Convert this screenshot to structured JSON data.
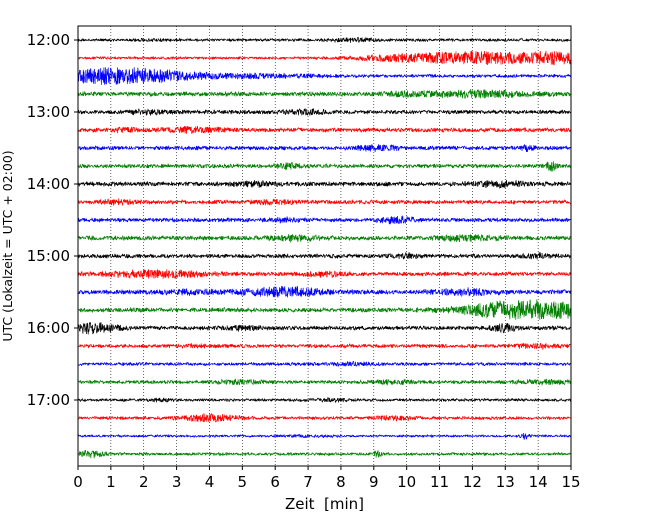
{
  "chart_data": {
    "type": "line",
    "chart_kind": "helicorder",
    "xlabel": "Zeit  [min]",
    "ylabel": "UTC (Lokalzeit = UTC + 02:00)",
    "xlim": [
      0,
      15
    ],
    "x_ticks": [
      0,
      1,
      2,
      3,
      4,
      5,
      6,
      7,
      8,
      9,
      10,
      11,
      12,
      13,
      14,
      15
    ],
    "x_tick_labels": [
      "0",
      "1",
      "2",
      "3",
      "4",
      "5",
      "6",
      "7",
      "8",
      "9",
      "10",
      "11",
      "12",
      "13",
      "14",
      "15"
    ],
    "y_tick_labels": [
      "12:00",
      "13:00",
      "14:00",
      "15:00",
      "16:00",
      "17:00"
    ],
    "vertical_grid": "dotted",
    "colors": [
      "#000000",
      "#ff0000",
      "#0000ff",
      "#008000"
    ],
    "traces": [
      {
        "start": "12:00",
        "color": "#000000",
        "base_amp": 1.6,
        "events": [
          {
            "t": 8.3,
            "w": 0.5,
            "a": 1.5
          },
          {
            "t": 2.2,
            "w": 0.3,
            "a": 0.8
          }
        ]
      },
      {
        "start": "12:15",
        "color": "#ff0000",
        "base_amp": 1.5,
        "events": [
          {
            "t": 12.2,
            "w": 1.6,
            "a": 6.0
          },
          {
            "t": 14.9,
            "w": 0.7,
            "a": 4.5
          },
          {
            "t": 9.5,
            "w": 0.9,
            "a": 1.5
          }
        ]
      },
      {
        "start": "12:30",
        "color": "#0000ff",
        "base_amp": 1.8,
        "events": [
          {
            "t": 1.2,
            "w": 1.5,
            "a": 7.5
          },
          {
            "t": 5.3,
            "w": 1.4,
            "a": 1.5
          }
        ]
      },
      {
        "start": "12:45",
        "color": "#008000",
        "base_amp": 2.4,
        "events": [
          {
            "t": 12.2,
            "w": 1.2,
            "a": 2.5
          },
          {
            "t": 10.0,
            "w": 0.4,
            "a": 1.2
          }
        ]
      },
      {
        "start": "13:00",
        "color": "#000000",
        "base_amp": 2.2,
        "events": [
          {
            "t": 6.9,
            "w": 0.4,
            "a": 2.0
          },
          {
            "t": 2.1,
            "w": 0.4,
            "a": 1.5
          }
        ]
      },
      {
        "start": "13:15",
        "color": "#ff0000",
        "base_amp": 2.3,
        "events": [
          {
            "t": 3.4,
            "w": 0.6,
            "a": 2.0
          },
          {
            "t": 1.5,
            "w": 0.3,
            "a": 1.5
          }
        ]
      },
      {
        "start": "13:30",
        "color": "#0000ff",
        "base_amp": 2.2,
        "events": [
          {
            "t": 9.1,
            "w": 0.5,
            "a": 2.0
          },
          {
            "t": 13.7,
            "w": 0.15,
            "a": 2.0
          }
        ]
      },
      {
        "start": "13:45",
        "color": "#008000",
        "base_amp": 2.2,
        "events": [
          {
            "t": 14.4,
            "w": 0.12,
            "a": 4.0
          },
          {
            "t": 6.4,
            "w": 0.3,
            "a": 2.0
          }
        ]
      },
      {
        "start": "14:00",
        "color": "#000000",
        "base_amp": 2.4,
        "events": [
          {
            "t": 12.8,
            "w": 0.5,
            "a": 2.0
          },
          {
            "t": 5.4,
            "w": 0.4,
            "a": 1.5
          }
        ]
      },
      {
        "start": "14:15",
        "color": "#ff0000",
        "base_amp": 2.2,
        "events": [
          {
            "t": 1.2,
            "w": 0.4,
            "a": 1.5
          },
          {
            "t": 6.0,
            "w": 0.4,
            "a": 1.5
          }
        ]
      },
      {
        "start": "14:30",
        "color": "#0000ff",
        "base_amp": 2.2,
        "events": [
          {
            "t": 9.7,
            "w": 0.35,
            "a": 3.0
          },
          {
            "t": 6.4,
            "w": 0.3,
            "a": 1.5
          }
        ]
      },
      {
        "start": "14:45",
        "color": "#008000",
        "base_amp": 2.4,
        "events": [
          {
            "t": 6.6,
            "w": 0.5,
            "a": 2.0
          },
          {
            "t": 11.8,
            "w": 0.7,
            "a": 2.0
          }
        ]
      },
      {
        "start": "15:00",
        "color": "#000000",
        "base_amp": 2.2,
        "events": [
          {
            "t": 10.0,
            "w": 0.3,
            "a": 1.5
          },
          {
            "t": 14.0,
            "w": 0.4,
            "a": 1.5
          }
        ]
      },
      {
        "start": "15:15",
        "color": "#ff0000",
        "base_amp": 2.2,
        "events": [
          {
            "t": 2.4,
            "w": 1.0,
            "a": 3.0
          },
          {
            "t": 7.5,
            "w": 0.5,
            "a": 1.5
          }
        ]
      },
      {
        "start": "15:30",
        "color": "#0000ff",
        "base_amp": 2.4,
        "events": [
          {
            "t": 6.3,
            "w": 0.8,
            "a": 4.0
          },
          {
            "t": 11.8,
            "w": 0.6,
            "a": 2.5
          },
          {
            "t": 3.5,
            "w": 0.8,
            "a": 1.5
          }
        ]
      },
      {
        "start": "15:45",
        "color": "#008000",
        "base_amp": 2.4,
        "events": [
          {
            "t": 14.2,
            "w": 1.4,
            "a": 7.0
          },
          {
            "t": 12.8,
            "w": 0.8,
            "a": 3.0
          }
        ]
      },
      {
        "start": "16:00",
        "color": "#000000",
        "base_amp": 2.2,
        "events": [
          {
            "t": 0.4,
            "w": 0.5,
            "a": 4.5
          },
          {
            "t": 13.0,
            "w": 0.3,
            "a": 3.0
          },
          {
            "t": 5.0,
            "w": 0.4,
            "a": 1.5
          }
        ]
      },
      {
        "start": "16:15",
        "color": "#ff0000",
        "base_amp": 2.0,
        "events": [
          {
            "t": 14.0,
            "w": 0.5,
            "a": 1.5
          },
          {
            "t": 3.8,
            "w": 0.4,
            "a": 1.0
          }
        ]
      },
      {
        "start": "16:30",
        "color": "#0000ff",
        "base_amp": 1.8,
        "events": [
          {
            "t": 8.3,
            "w": 0.5,
            "a": 1.0
          }
        ]
      },
      {
        "start": "16:45",
        "color": "#008000",
        "base_amp": 2.0,
        "events": [
          {
            "t": 5.0,
            "w": 0.5,
            "a": 1.5
          },
          {
            "t": 9.7,
            "w": 0.4,
            "a": 1.5
          },
          {
            "t": 14.3,
            "w": 0.6,
            "a": 1.5
          }
        ]
      },
      {
        "start": "17:00",
        "color": "#000000",
        "base_amp": 1.6,
        "events": [
          {
            "t": 7.7,
            "w": 0.4,
            "a": 1.0
          },
          {
            "t": 2.5,
            "w": 0.3,
            "a": 0.8
          }
        ]
      },
      {
        "start": "17:15",
        "color": "#ff0000",
        "base_amp": 1.8,
        "events": [
          {
            "t": 4.0,
            "w": 0.6,
            "a": 3.0
          },
          {
            "t": 9.6,
            "w": 0.4,
            "a": 1.5
          }
        ]
      },
      {
        "start": "17:30",
        "color": "#0000ff",
        "base_amp": 1.4,
        "events": [
          {
            "t": 13.6,
            "w": 0.1,
            "a": 2.5
          },
          {
            "t": 7.0,
            "w": 0.5,
            "a": 0.8
          }
        ]
      },
      {
        "start": "17:45",
        "color": "#008000",
        "base_amp": 1.6,
        "events": [
          {
            "t": 0.4,
            "w": 0.3,
            "a": 3.0
          },
          {
            "t": 9.1,
            "w": 0.1,
            "a": 2.5
          }
        ]
      }
    ]
  }
}
